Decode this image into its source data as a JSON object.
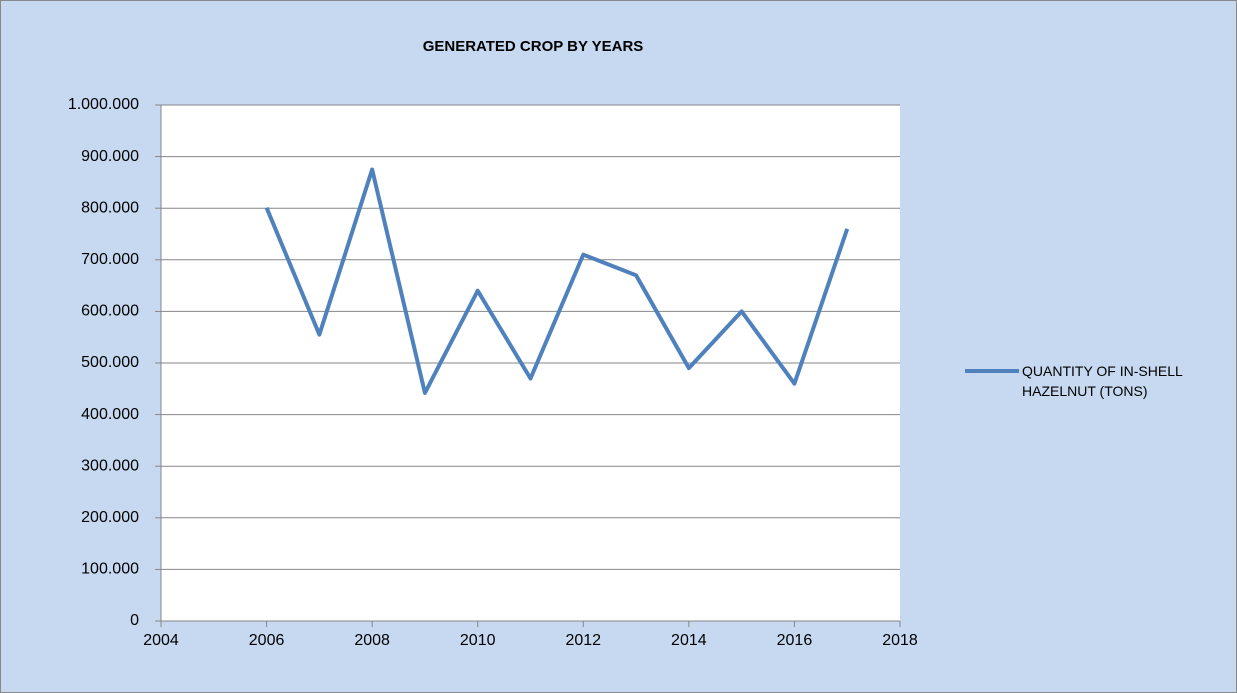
{
  "chart_data": {
    "type": "line",
    "title": "GENERATED CROP BY YEARS",
    "x": [
      2006,
      2007,
      2008,
      2009,
      2010,
      2011,
      2012,
      2013,
      2014,
      2015,
      2016,
      2017
    ],
    "series": [
      {
        "name": "QUANTITY OF IN-SHELL HAZELNUT (TONS)",
        "color": "#4f81bd",
        "values": [
          801000,
          555000,
          875000,
          442000,
          640000,
          470000,
          710000,
          670000,
          490000,
          600000,
          460000,
          760000
        ]
      }
    ],
    "xlim": [
      2004,
      2018
    ],
    "xticks": [
      2004,
      2006,
      2008,
      2010,
      2012,
      2014,
      2016,
      2018
    ],
    "ylim": [
      0,
      1000000
    ],
    "yticks": [
      0,
      {
        "value": 100000,
        "label": "100.000"
      },
      {
        "value": 200000,
        "label": "200.000"
      },
      {
        "value": 300000,
        "label": "300.000"
      },
      {
        "value": 400000,
        "label": "400.000"
      },
      {
        "value": 500000,
        "label": "500.000"
      },
      {
        "value": 600000,
        "label": "600.000"
      },
      {
        "value": 700000,
        "label": "700.000"
      },
      {
        "value": 800000,
        "label": "800.000"
      },
      {
        "value": 900000,
        "label": "900.000"
      },
      {
        "value": 1000000,
        "label": "1.000.000"
      }
    ],
    "grid": true,
    "legend": "right"
  }
}
